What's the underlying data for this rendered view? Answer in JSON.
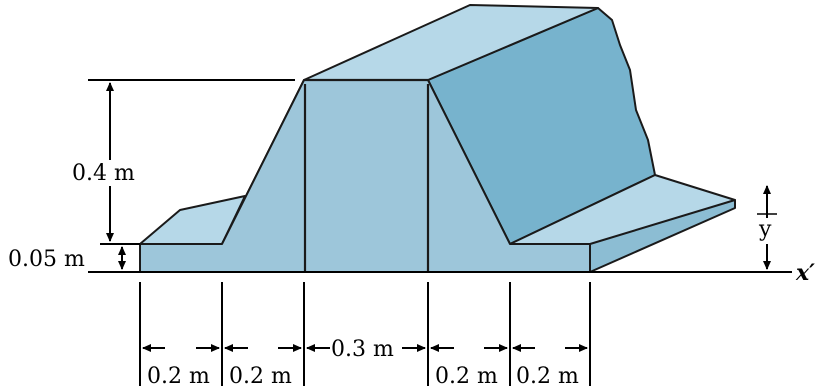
{
  "figure": {
    "colors": {
      "front_face": "#9dc6da",
      "top_surface": "#b6d8e8",
      "right_slope": "#77b3cd",
      "outline": "#1a1a1a",
      "background": "#ffffff"
    },
    "labels": {
      "height_upper": "0.4 m",
      "height_lower": "0.05 m",
      "width_1": "0.2 m",
      "width_2": "0.2 m",
      "width_top": "0.3 m",
      "width_3": "0.2 m",
      "width_4": "0.2 m",
      "centroid": "y",
      "axis": "x′"
    }
  }
}
